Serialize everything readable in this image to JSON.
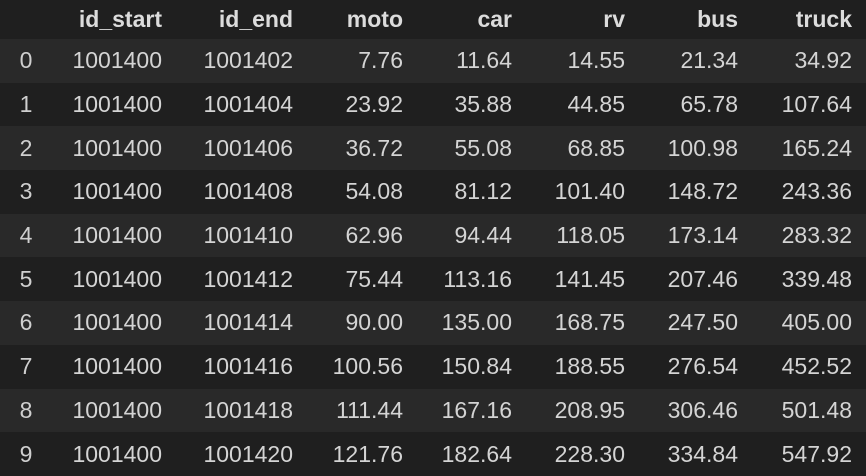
{
  "table": {
    "columns": [
      "",
      "id_start",
      "id_end",
      "moto",
      "car",
      "rv",
      "bus",
      "truck"
    ],
    "rows": [
      [
        "0",
        "1001400",
        "1001402",
        "7.76",
        "11.64",
        "14.55",
        "21.34",
        "34.92"
      ],
      [
        "1",
        "1001400",
        "1001404",
        "23.92",
        "35.88",
        "44.85",
        "65.78",
        "107.64"
      ],
      [
        "2",
        "1001400",
        "1001406",
        "36.72",
        "55.08",
        "68.85",
        "100.98",
        "165.24"
      ],
      [
        "3",
        "1001400",
        "1001408",
        "54.08",
        "81.12",
        "101.40",
        "148.72",
        "243.36"
      ],
      [
        "4",
        "1001400",
        "1001410",
        "62.96",
        "94.44",
        "118.05",
        "173.14",
        "283.32"
      ],
      [
        "5",
        "1001400",
        "1001412",
        "75.44",
        "113.16",
        "141.45",
        "207.46",
        "339.48"
      ],
      [
        "6",
        "1001400",
        "1001414",
        "90.00",
        "135.00",
        "168.75",
        "247.50",
        "405.00"
      ],
      [
        "7",
        "1001400",
        "1001416",
        "100.56",
        "150.84",
        "188.55",
        "276.54",
        "452.52"
      ],
      [
        "8",
        "1001400",
        "1001418",
        "111.44",
        "167.16",
        "208.95",
        "306.46",
        "501.48"
      ],
      [
        "9",
        "1001400",
        "1001420",
        "121.76",
        "182.64",
        "228.30",
        "334.84",
        "547.92"
      ]
    ]
  },
  "colors": {
    "background": "#1f1f1f",
    "stripe": "#292929",
    "text": "#d4d4d4"
  }
}
